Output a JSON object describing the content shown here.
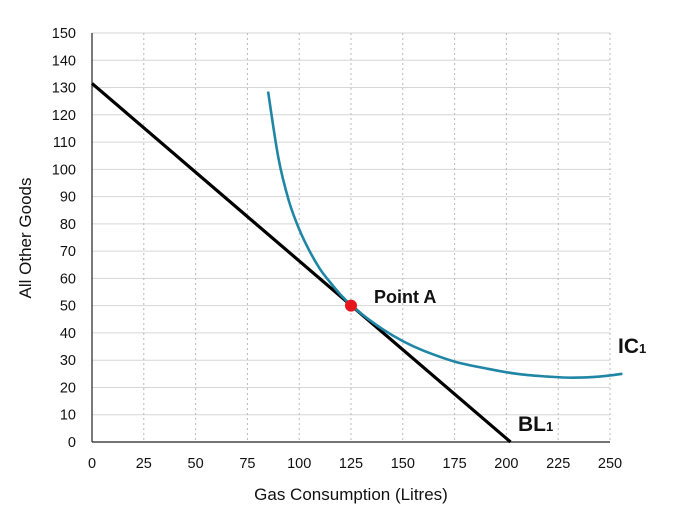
{
  "chart_data": {
    "type": "line",
    "title": "",
    "xlabel": "Gas Consumption (Litres)",
    "ylabel": "All Other Goods",
    "xlim": [
      0,
      250
    ],
    "ylim": [
      0,
      150
    ],
    "xticks": [
      0,
      25,
      50,
      75,
      100,
      125,
      150,
      175,
      200,
      225,
      250
    ],
    "yticks": [
      0,
      10,
      20,
      30,
      40,
      50,
      60,
      70,
      80,
      90,
      100,
      110,
      120,
      130,
      140,
      150
    ],
    "grid": {
      "vertical": true,
      "horizontal": true
    },
    "colors": {
      "budget_line": "#000000",
      "indifference_curve": "#1f86a6",
      "point": "#e8141c"
    },
    "series": [
      {
        "name": "BL1",
        "label_main": "BL",
        "label_sub": "1",
        "x": [
          0,
          202
        ],
        "y": [
          131.5,
          0
        ]
      },
      {
        "name": "IC1",
        "label_main": "IC",
        "label_sub": "1",
        "x": [
          85,
          90,
          95,
          100,
          105,
          110,
          115,
          120,
          125,
          130,
          140,
          150,
          160,
          175,
          190,
          205,
          220,
          232,
          245,
          256
        ],
        "y": [
          128.5,
          104,
          88.5,
          78,
          70,
          63.5,
          58.5,
          54,
          50.2,
          47,
          41.5,
          37,
          33.5,
          29.5,
          27,
          25,
          24,
          23.6,
          24,
          25
        ]
      }
    ],
    "points": [
      {
        "label": "Point A",
        "x": 125,
        "y": 50
      }
    ]
  }
}
